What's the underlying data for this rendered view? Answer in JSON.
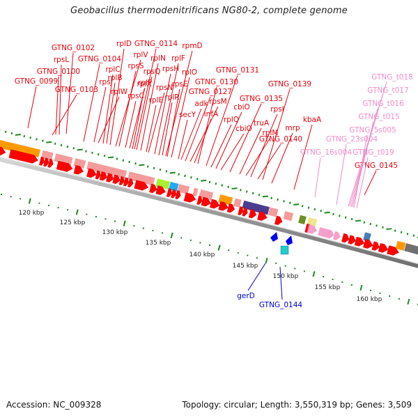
{
  "title": "Geobacillus thermodenitrificans NG80-2, complete genome",
  "footer": {
    "accession": "Accession: NC_009328",
    "summary": "Topology: circular; Length: 3,550,319 bp; Genes: 3,509"
  },
  "colors": {
    "cds_forward": "#ff0000",
    "label_red": "#e8000b",
    "label_pink": "#f08cc8",
    "label_blue": "#0000cc",
    "tick_green": "#1a8a1a",
    "backbone": "#9a9a9a"
  },
  "scale": {
    "ticks": [
      "120 kbp",
      "125 kbp",
      "130 kbp",
      "135 kbp",
      "140 kbp",
      "145 kbp",
      "150 kbp",
      "155 kbp",
      "160 kbp"
    ]
  },
  "labels_forward": [
    {
      "text": "GTNG_0102"
    },
    {
      "text": "rpsL"
    },
    {
      "text": "GTNG_0100"
    },
    {
      "text": "GTNG_0099"
    },
    {
      "text": "GTNG_0104"
    },
    {
      "text": "GTNG_0103"
    },
    {
      "text": "rplD"
    },
    {
      "text": "rplV"
    },
    {
      "text": "rplC"
    },
    {
      "text": "rpsJ"
    },
    {
      "text": "rplB"
    },
    {
      "text": "rplW"
    },
    {
      "text": "rpsS"
    },
    {
      "text": "rpsC"
    },
    {
      "text": "rplP"
    },
    {
      "text": "GTNG_0114"
    },
    {
      "text": "rplN"
    },
    {
      "text": "rpsQ"
    },
    {
      "text": "rplE"
    },
    {
      "text": "rpsN"
    },
    {
      "text": "rplX"
    },
    {
      "text": "rpsH"
    },
    {
      "text": "rplF"
    },
    {
      "text": "rplR"
    },
    {
      "text": "rpsE"
    },
    {
      "text": "rpmD"
    },
    {
      "text": "rplO"
    },
    {
      "text": "secY"
    },
    {
      "text": "adk"
    },
    {
      "text": "GTNG_0127"
    },
    {
      "text": "rpsM"
    },
    {
      "text": "infA"
    },
    {
      "text": "GTNG_0130"
    },
    {
      "text": "GTNG_0131"
    },
    {
      "text": "rplQ"
    },
    {
      "text": "cbiO"
    },
    {
      "text": "cbiO"
    },
    {
      "text": "GTNG_0135"
    },
    {
      "text": "truA"
    },
    {
      "text": "rplM"
    },
    {
      "text": "rpsI"
    },
    {
      "text": "GTNG_0139"
    },
    {
      "text": "GTNG_0140"
    },
    {
      "text": "mrp"
    },
    {
      "text": "kbaA"
    },
    {
      "text": "GTNG_0145"
    }
  ],
  "labels_rna": [
    {
      "text": "GTNG_t018"
    },
    {
      "text": "GTNG_t017"
    },
    {
      "text": "GTNG_t016"
    },
    {
      "text": "GTNG_t015"
    },
    {
      "text": "GTNG_5s005"
    },
    {
      "text": "GTNG_23s004"
    },
    {
      "text": "GTNG_t019"
    },
    {
      "text": "GTNG_16s004"
    }
  ],
  "labels_reverse": [
    {
      "text": "gerD"
    },
    {
      "text": "GTNG_0144"
    }
  ]
}
